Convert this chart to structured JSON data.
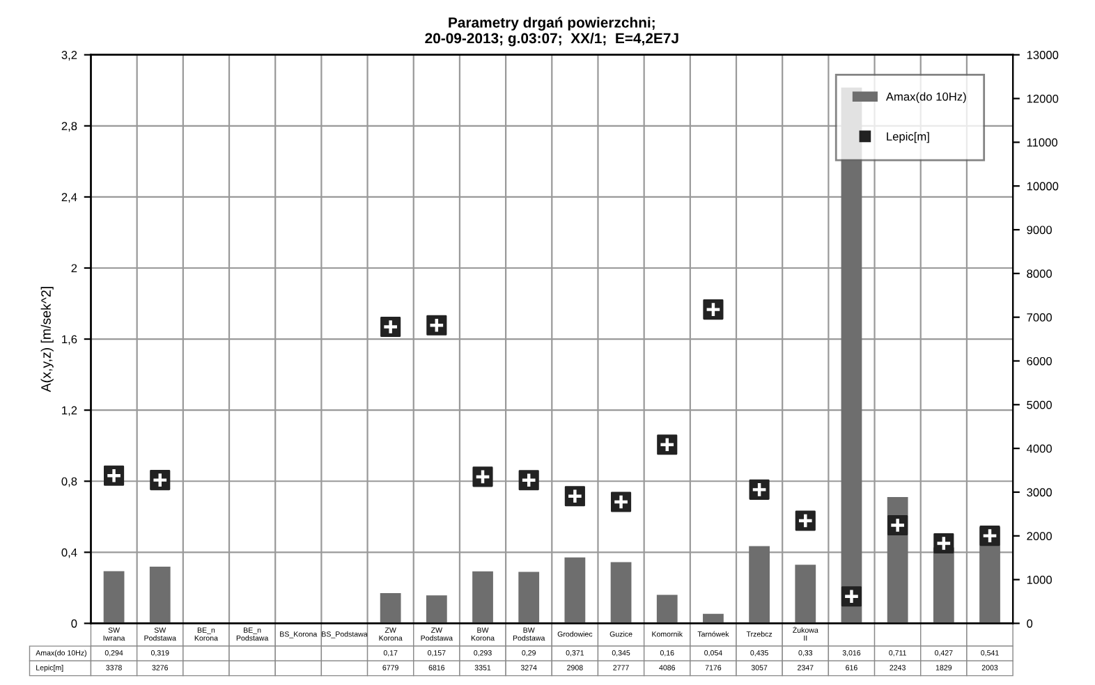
{
  "chart_data": {
    "type": "bar",
    "title": "Parametry drgań powierzchni;\n20-09-2013; g.03:07;  XX/1;  E=4,2E7J",
    "ylabel": "A(x,y,z) [m/sek^2]",
    "categories": [
      "SW Iwrana",
      "SW Podstawa",
      "BE_n Korona",
      "BE_n Podstawa",
      "BS_Korona",
      "BS_Podstawa",
      "ZW Korona",
      "ZW Podstawa",
      "BW Korona",
      "BW Podstawa",
      "Grodowiec",
      "Guzice",
      "Komornik",
      "Tarnówek",
      "Trzebcz",
      "Żukowa II",
      null,
      null,
      null,
      null
    ],
    "series": [
      {
        "name": "Amax(do 10Hz)",
        "color": "#6e6e6e",
        "values": [
          0.294,
          0.319,
          null,
          null,
          null,
          null,
          0.17,
          0.157,
          0.293,
          0.29,
          0.371,
          0.345,
          0.16,
          0.054,
          0.435,
          0.33,
          3.016,
          0.711,
          0.427,
          0.541
        ],
        "value_labels": [
          "0,294",
          "0,319",
          null,
          null,
          null,
          null,
          "0,17",
          "0,157",
          "0,293",
          "0,29",
          "0,371",
          "0,345",
          "0,16",
          "0,054",
          "0,435",
          "0,33",
          "3,016",
          "0,711",
          "0,427",
          "0,541"
        ]
      },
      {
        "name": "Lepic[m]",
        "type": "scatter",
        "axis": "y2",
        "marker": "square",
        "color": "#222222",
        "values": [
          3378,
          3276,
          null,
          null,
          null,
          null,
          6779,
          6816,
          3351,
          3274,
          2908,
          2777,
          4086,
          7176,
          3057,
          2347,
          616,
          2243,
          1829,
          2003
        ],
        "value_labels": [
          "3378",
          "3276",
          null,
          null,
          null,
          null,
          "6779",
          "6816",
          "3351",
          "3274",
          "2908",
          "2777",
          "4086",
          "7176",
          "3057",
          "2347",
          "616",
          "2243",
          "1829",
          "2003"
        ]
      }
    ],
    "ylim": [
      0,
      3.2
    ],
    "yticks": [
      {
        "value": 0,
        "label": "0"
      },
      {
        "value": 0.4,
        "label": "0,4"
      },
      {
        "value": 0.8,
        "label": "0,8"
      },
      {
        "value": 1.2,
        "label": "1,2"
      },
      {
        "value": 1.6,
        "label": "1,6"
      },
      {
        "value": 2,
        "label": "2"
      },
      {
        "value": 2.4,
        "label": "2,4"
      },
      {
        "value": 2.8,
        "label": "2,8"
      },
      {
        "value": 3.2,
        "label": "3,2"
      }
    ],
    "y2lim": [
      0,
      13000
    ],
    "y2ticks": [
      0,
      1000,
      2000,
      3000,
      4000,
      5000,
      6000,
      7000,
      8000,
      9000,
      10000,
      11000,
      12000,
      13000
    ],
    "grid": true,
    "legend": "top right"
  }
}
